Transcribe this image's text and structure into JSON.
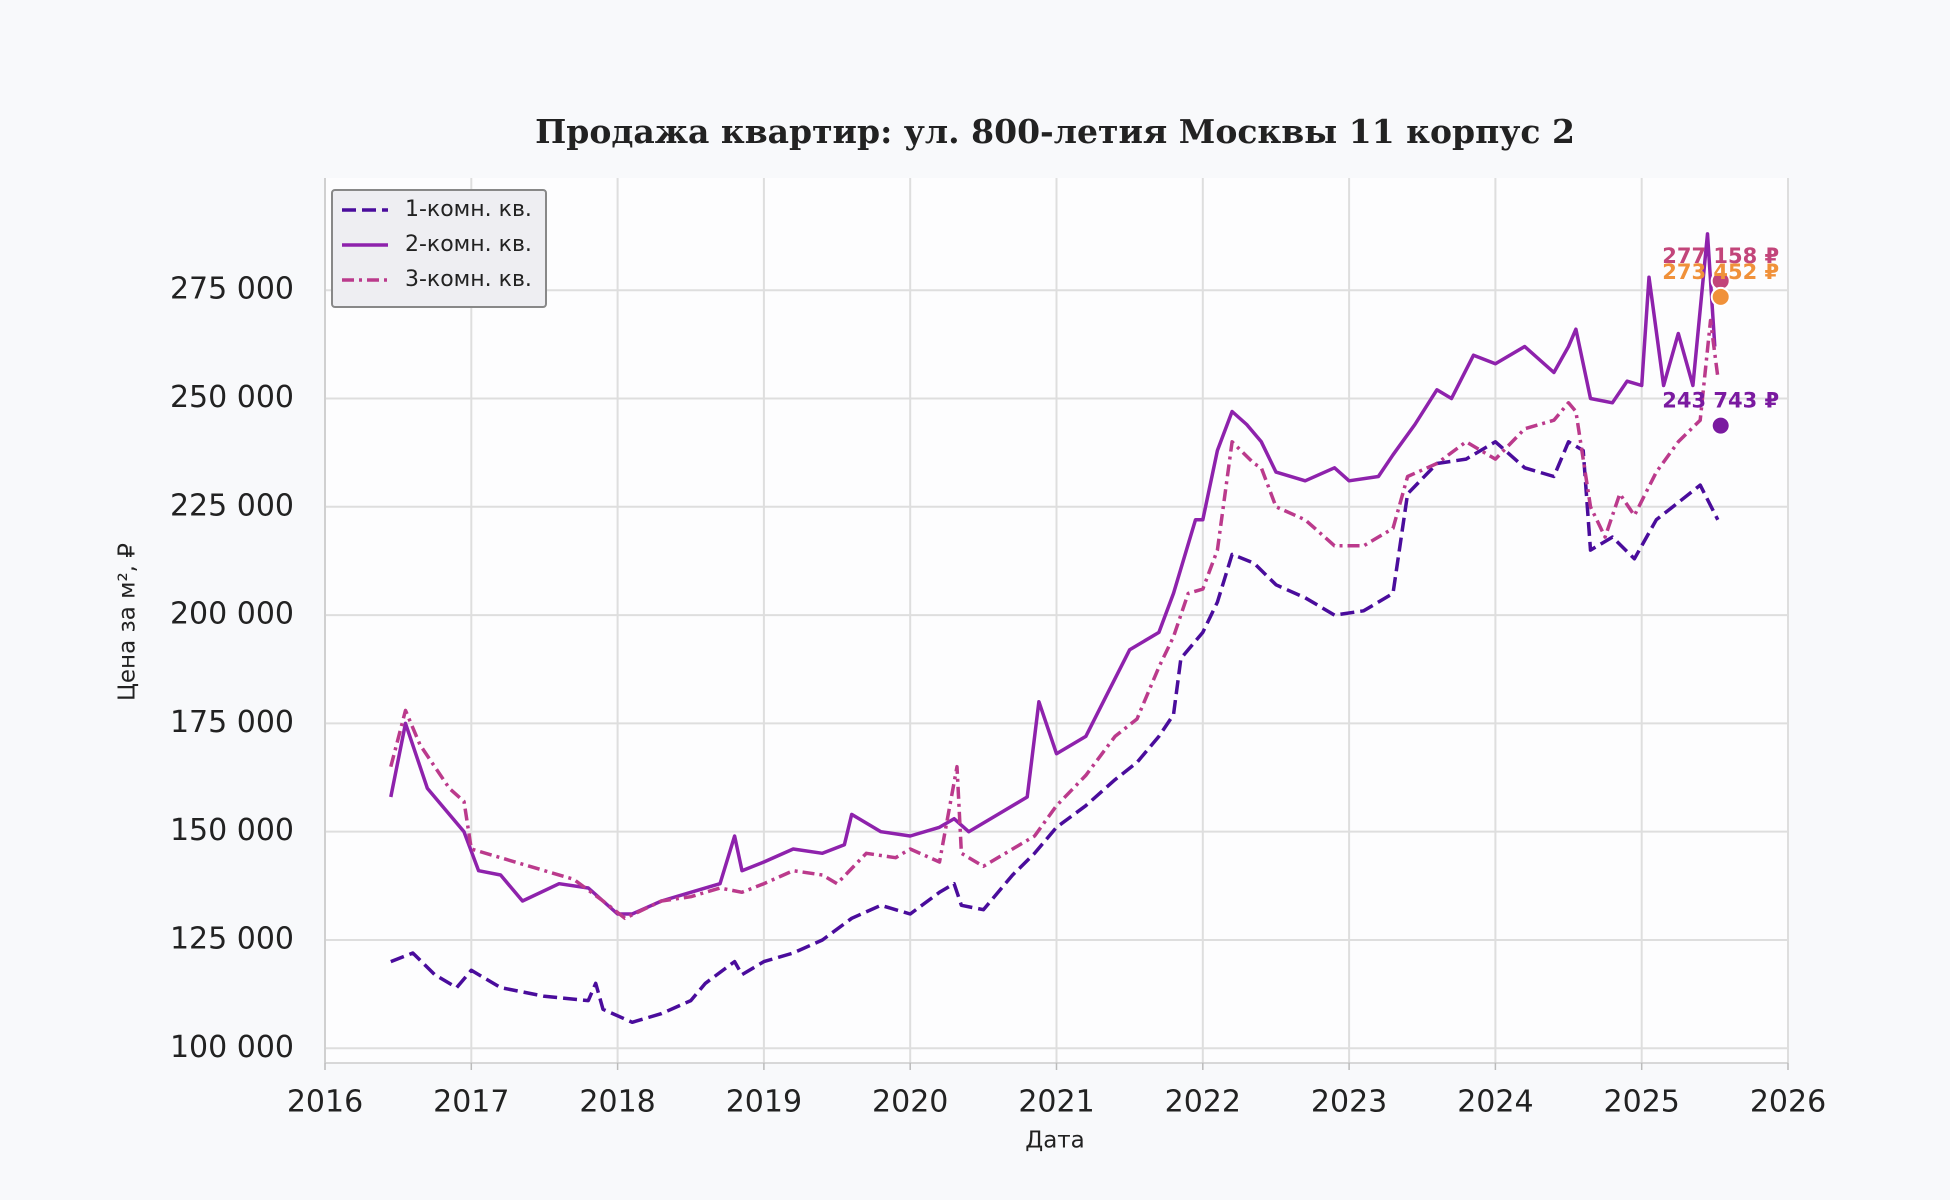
{
  "chart_data": {
    "type": "line",
    "title": "Продажа квартир: ул. 800-летия Москвы 11 корпус 2",
    "x_label": "Дата",
    "y_label": "Цена за м², ₽",
    "xlim": [
      2016,
      2026
    ],
    "xticks": [
      2016,
      2017,
      2018,
      2019,
      2020,
      2021,
      2022,
      2023,
      2024,
      2025,
      2026
    ],
    "ylim": [
      96600,
      300900
    ],
    "yticks": [
      {
        "value": 100000,
        "label": "100 000"
      },
      {
        "value": 125000,
        "label": "125 000"
      },
      {
        "value": 150000,
        "label": "150 000"
      },
      {
        "value": 175000,
        "label": "175 000"
      },
      {
        "value": 200000,
        "label": "200 000"
      },
      {
        "value": 225000,
        "label": "225 000"
      },
      {
        "value": 250000,
        "label": "250 000"
      },
      {
        "value": 275000,
        "label": "275 000"
      }
    ],
    "grid": true,
    "legend": "upper left",
    "series": [
      {
        "name": "1-комн. кв.",
        "color": "#4a0c9c",
        "dash": "dashed",
        "x": [
          2016.45,
          2016.6,
          2016.75,
          2016.9,
          2017.0,
          2017.2,
          2017.5,
          2017.8,
          2017.85,
          2017.9,
          2018.1,
          2018.3,
          2018.5,
          2018.6,
          2018.8,
          2018.85,
          2019.0,
          2019.2,
          2019.4,
          2019.6,
          2019.8,
          2020.0,
          2020.2,
          2020.3,
          2020.35,
          2020.5,
          2020.7,
          2020.85,
          2021.0,
          2021.2,
          2021.4,
          2021.55,
          2021.7,
          2021.8,
          2021.85,
          2022.0,
          2022.1,
          2022.2,
          2022.35,
          2022.5,
          2022.7,
          2022.9,
          2023.1,
          2023.3,
          2023.4,
          2023.6,
          2023.8,
          2024.0,
          2024.2,
          2024.4,
          2024.5,
          2024.6,
          2024.65,
          2024.8,
          2024.95,
          2025.1,
          2025.25,
          2025.4,
          2025.52
        ],
        "values": [
          120000,
          122000,
          117000,
          114000,
          118000,
          114000,
          112000,
          111000,
          115000,
          109000,
          106000,
          108000,
          111000,
          115000,
          120000,
          117000,
          120000,
          122000,
          125000,
          130000,
          133000,
          131000,
          136000,
          138000,
          133000,
          132000,
          140000,
          145000,
          151000,
          156000,
          162000,
          166000,
          172000,
          177000,
          190000,
          196000,
          203000,
          214000,
          212000,
          207000,
          204000,
          200000,
          201000,
          205000,
          228000,
          235000,
          236000,
          240000,
          234000,
          232000,
          240000,
          238000,
          215000,
          218000,
          213000,
          222000,
          226000,
          230000,
          222000
        ]
      },
      {
        "name": "2-комн. кв.",
        "color": "#8e22ac",
        "dash": "solid",
        "x": [
          2016.45,
          2016.55,
          2016.7,
          2016.95,
          2017.05,
          2017.2,
          2017.35,
          2017.6,
          2017.8,
          2018.0,
          2018.1,
          2018.3,
          2018.5,
          2018.7,
          2018.8,
          2018.85,
          2019.0,
          2019.2,
          2019.4,
          2019.55,
          2019.6,
          2019.8,
          2020.0,
          2020.2,
          2020.3,
          2020.4,
          2020.6,
          2020.8,
          2020.88,
          2021.0,
          2021.2,
          2021.35,
          2021.5,
          2021.7,
          2021.8,
          2021.95,
          2022.0,
          2022.1,
          2022.2,
          2022.3,
          2022.4,
          2022.5,
          2022.7,
          2022.9,
          2023.0,
          2023.2,
          2023.3,
          2023.45,
          2023.6,
          2023.7,
          2023.85,
          2024.0,
          2024.2,
          2024.4,
          2024.5,
          2024.55,
          2024.65,
          2024.8,
          2024.9,
          2025.0,
          2025.05,
          2025.15,
          2025.25,
          2025.35,
          2025.45,
          2025.5
        ],
        "values": [
          158000,
          175000,
          160000,
          150000,
          141000,
          140000,
          134000,
          138000,
          137000,
          131000,
          131000,
          134000,
          136000,
          138000,
          149000,
          141000,
          143000,
          146000,
          145000,
          147000,
          154000,
          150000,
          149000,
          151000,
          153000,
          150000,
          154000,
          158000,
          180000,
          168000,
          172000,
          182000,
          192000,
          196000,
          205000,
          222000,
          222000,
          238000,
          247000,
          244000,
          240000,
          233000,
          231000,
          234000,
          231000,
          232000,
          237000,
          244000,
          252000,
          250000,
          260000,
          258000,
          262000,
          256000,
          262000,
          266000,
          250000,
          249000,
          254000,
          253000,
          278000,
          253000,
          265000,
          253000,
          288000,
          262000
        ]
      },
      {
        "name": "3-комн. кв.",
        "color": "#bb3a8c",
        "dash": "dashdot",
        "x": [
          2016.45,
          2016.55,
          2016.65,
          2016.85,
          2016.95,
          2017.0,
          2017.2,
          2017.5,
          2017.7,
          2017.9,
          2018.05,
          2018.3,
          2018.5,
          2018.7,
          2018.85,
          2019.0,
          2019.2,
          2019.4,
          2019.5,
          2019.7,
          2019.9,
          2020.0,
          2020.2,
          2020.32,
          2020.35,
          2020.5,
          2020.7,
          2020.85,
          2021.0,
          2021.2,
          2021.4,
          2021.55,
          2021.7,
          2021.8,
          2021.9,
          2022.0,
          2022.1,
          2022.2,
          2022.35,
          2022.4,
          2022.5,
          2022.7,
          2022.9,
          2023.1,
          2023.3,
          2023.4,
          2023.6,
          2023.8,
          2024.0,
          2024.2,
          2024.4,
          2024.5,
          2024.55,
          2024.65,
          2024.75,
          2024.85,
          2024.95,
          2025.1,
          2025.25,
          2025.4,
          2025.47,
          2025.52
        ],
        "values": [
          165000,
          178000,
          170000,
          160000,
          157000,
          146000,
          144000,
          141000,
          139000,
          134000,
          130000,
          134000,
          135000,
          137000,
          136000,
          138000,
          141000,
          140000,
          138000,
          145000,
          144000,
          146000,
          143000,
          165000,
          145000,
          142000,
          146000,
          149000,
          156000,
          163000,
          172000,
          176000,
          188000,
          195000,
          205000,
          206000,
          215000,
          240000,
          235000,
          234000,
          225000,
          222000,
          216000,
          216000,
          220000,
          232000,
          235000,
          240000,
          236000,
          243000,
          245000,
          249000,
          247000,
          225000,
          218000,
          228000,
          223000,
          233000,
          240000,
          245000,
          268000,
          255000
        ]
      }
    ],
    "annotations": [
      {
        "x": 2025.54,
        "value": 277158,
        "label": "277 158 ₽",
        "color": "#c2457a"
      },
      {
        "x": 2025.54,
        "value": 273452,
        "label": "273 452 ₽",
        "color": "#f0913a"
      },
      {
        "x": 2025.54,
        "value": 243743,
        "label": "243 743 ₽",
        "color": "#7a1aa0"
      }
    ]
  }
}
